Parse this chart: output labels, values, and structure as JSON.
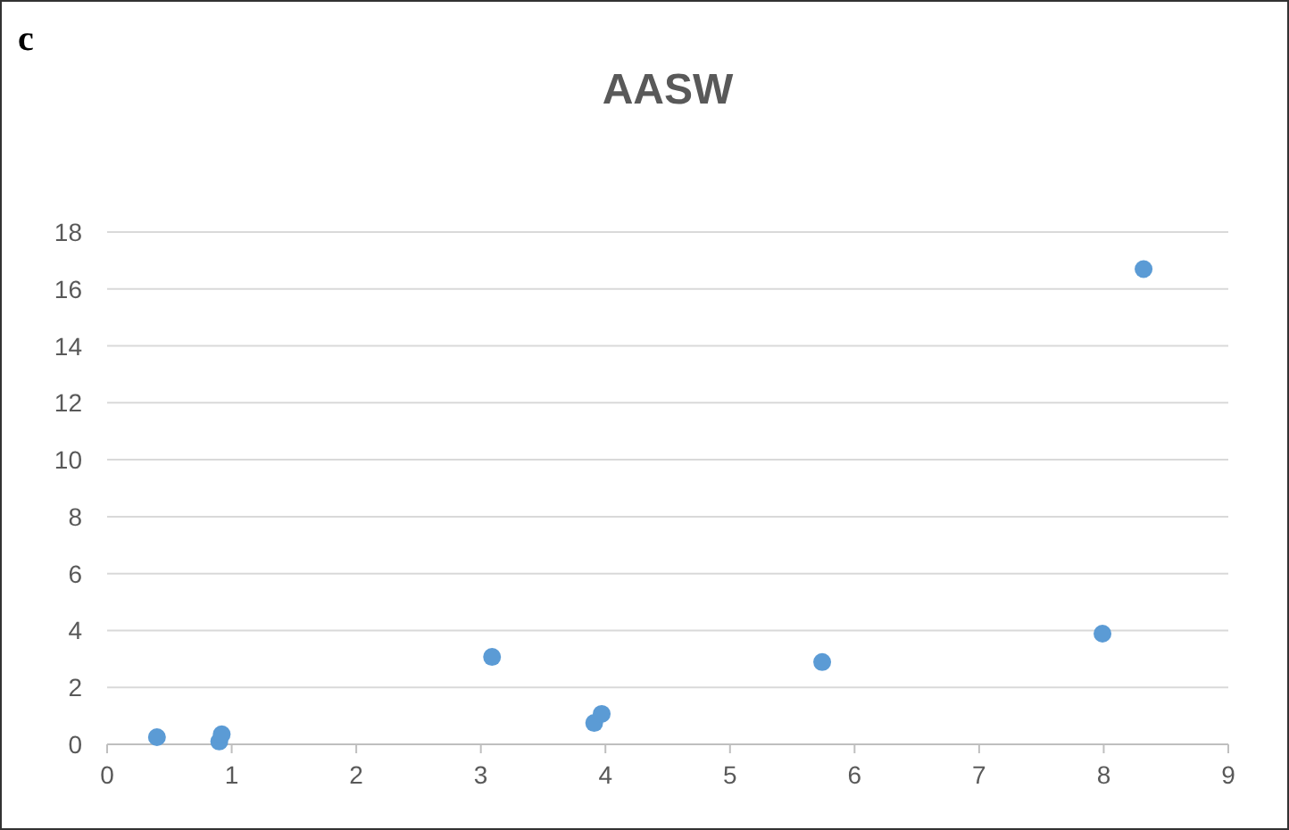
{
  "chart_data": {
    "type": "scatter",
    "title": "AASW",
    "annotations": [
      "c"
    ],
    "x": [
      0.4,
      0.9,
      0.92,
      3.09,
      3.91,
      3.97,
      5.74,
      7.99,
      8.32
    ],
    "series": [
      {
        "color": "#5b9bd5",
        "values": [
          0.25,
          0.1,
          0.35,
          3.07,
          0.75,
          1.07,
          2.89,
          3.89,
          16.7
        ]
      }
    ],
    "xlim": [
      0,
      9
    ],
    "xticks": [
      0,
      1,
      2,
      3,
      4,
      5,
      6,
      7,
      8,
      9
    ],
    "ylim": [
      0,
      18
    ],
    "yticks": [
      0,
      2,
      4,
      6,
      8,
      10,
      12,
      14,
      16,
      18
    ],
    "grid": "y",
    "marker": "circle"
  }
}
